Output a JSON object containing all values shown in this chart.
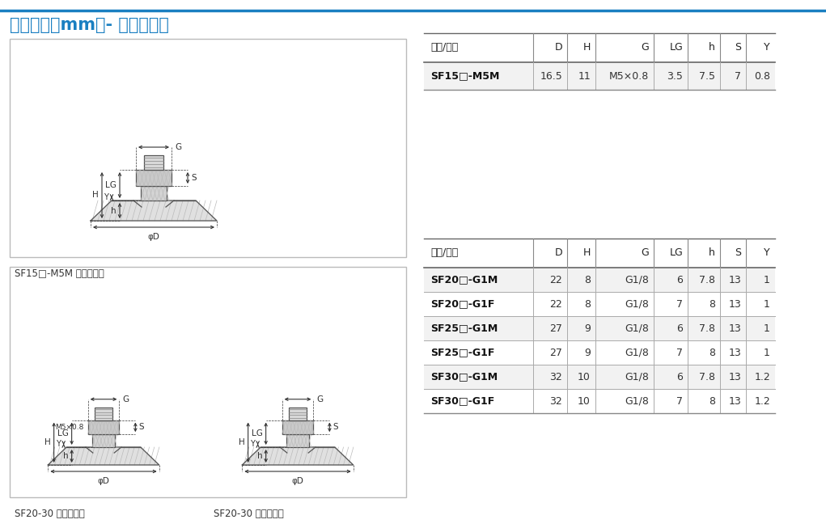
{
  "title": "尺寸规格（mm）- 吸盘带接头",
  "title_color": "#1A7FC1",
  "title_fontsize": 15,
  "top_line_color": "#1A7FC1",
  "table1_header": [
    "型号/尺寸",
    "D",
    "H",
    "G",
    "LG",
    "h",
    "S",
    "Y"
  ],
  "table1_rows": [
    [
      "SF15□-M5M",
      "16.5",
      "11",
      "M5×0.8",
      "3.5",
      "7.5",
      "7",
      "0.8"
    ]
  ],
  "table2_header": [
    "型号/尺寸",
    "D",
    "H",
    "G",
    "LG",
    "h",
    "S",
    "Y"
  ],
  "table2_rows": [
    [
      "SF20□-G1M",
      "22",
      "8",
      "G1/8",
      "6",
      "7.8",
      "13",
      "1"
    ],
    [
      "SF20□-G1F",
      "22",
      "8",
      "G1/8",
      "7",
      "8",
      "13",
      "1"
    ],
    [
      "SF25□-G1M",
      "27",
      "9",
      "G1/8",
      "6",
      "7.8",
      "13",
      "1"
    ],
    [
      "SF25□-G1F",
      "27",
      "9",
      "G1/8",
      "7",
      "8",
      "13",
      "1"
    ],
    [
      "SF30□-G1M",
      "32",
      "10",
      "G1/8",
      "6",
      "7.8",
      "13",
      "1.2"
    ],
    [
      "SF30□-G1F",
      "32",
      "10",
      "G1/8",
      "7",
      "8",
      "13",
      "1.2"
    ]
  ],
  "caption1": "SF15□-M5M 外螺纹连接",
  "caption2": "SF20-30 外螺纹连接",
  "caption3": "SF20-30 内螺纹连接",
  "bg_color": "#ffffff",
  "diagram_border_color": "#bbbbbb",
  "dim_color": "#333333",
  "col_widths1": [
    135,
    42,
    35,
    72,
    42,
    40,
    32,
    36
  ],
  "col_widths2": [
    135,
    42,
    35,
    72,
    42,
    40,
    32,
    36
  ]
}
